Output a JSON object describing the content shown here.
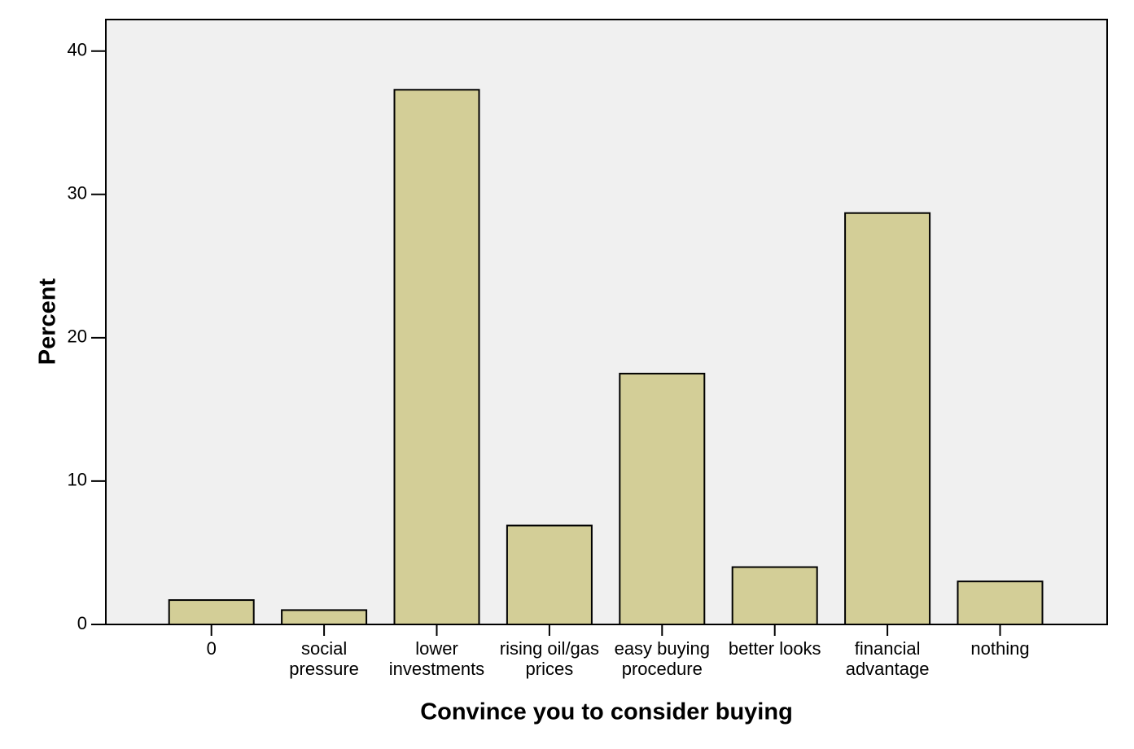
{
  "chart_data": {
    "type": "bar",
    "x_label": "Convince you to consider buying",
    "y_label": "Percent",
    "categories": [
      [
        "0"
      ],
      [
        "social",
        "pressure"
      ],
      [
        "lower",
        "investments"
      ],
      [
        "rising oil/gas",
        "prices"
      ],
      [
        "easy buying",
        "procedure"
      ],
      [
        "better looks"
      ],
      [
        "financial",
        "advantage"
      ],
      [
        "nothing"
      ]
    ],
    "values": [
      1.7,
      1.0,
      37.3,
      6.9,
      17.5,
      4.0,
      28.7,
      3.0
    ],
    "color": "#d3ce97",
    "ylim": [
      0,
      42.2
    ],
    "yticks": [
      0,
      10,
      20,
      30,
      40
    ],
    "grid": false
  }
}
